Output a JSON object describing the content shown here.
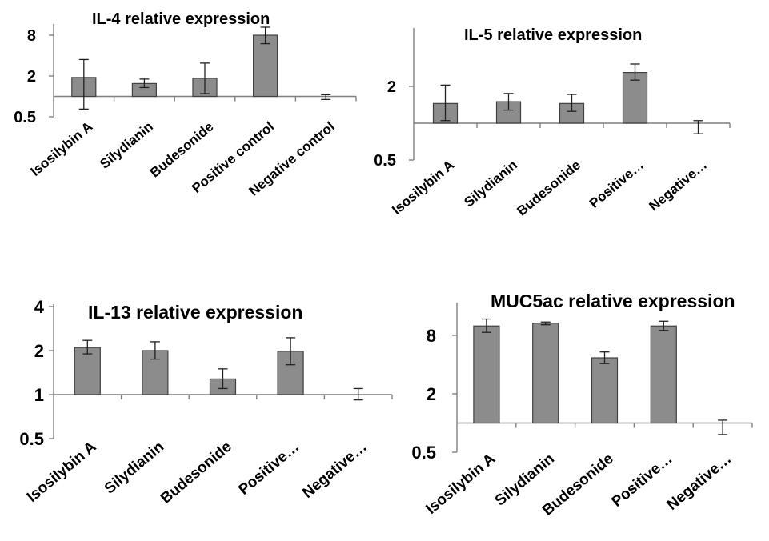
{
  "chart_data": [
    {
      "type": "bar",
      "title": "IL-4 relative expression",
      "scale": "log2",
      "categories": [
        "Isosilybin A",
        "Silydianin",
        "Budesonide",
        "Positive control",
        "Negative control"
      ],
      "values": [
        1.9,
        1.55,
        1.85,
        8.0,
        0.98
      ],
      "errors": [
        [
          0.65,
          3.5
        ],
        [
          1.35,
          1.8
        ],
        [
          1.1,
          3.1
        ],
        [
          6.0,
          10.5
        ],
        [
          0.9,
          1.06
        ]
      ],
      "yticks": [
        "0.5",
        "2",
        "8"
      ],
      "ylim": [
        0.5,
        12
      ],
      "baseline": 1
    },
    {
      "type": "bar",
      "title": "IL-5 relative expression",
      "scale": "log2",
      "categories": [
        "Isosilybin A",
        "Silydianin",
        "Budesonide",
        "Positive…",
        "Negative…"
      ],
      "values": [
        1.45,
        1.5,
        1.45,
        2.6,
        0.9
      ],
      "errors": [
        [
          1.05,
          2.05
        ],
        [
          1.28,
          1.75
        ],
        [
          1.25,
          1.72
        ],
        [
          2.25,
          3.05
        ],
        [
          0.82,
          1.05
        ]
      ],
      "yticks": [
        "0.5",
        "2"
      ],
      "ylim": [
        0.5,
        6
      ],
      "baseline": 1
    },
    {
      "type": "bar",
      "title": "IL-13 relative expression",
      "scale": "log2",
      "categories": [
        "Isosilybin A",
        "Silydianin",
        "Budesonide",
        "Positive…",
        "Negative…"
      ],
      "values": [
        2.1,
        2.0,
        1.28,
        1.98,
        1.0
      ],
      "errors": [
        [
          1.9,
          2.35
        ],
        [
          1.75,
          2.3
        ],
        [
          1.1,
          1.5
        ],
        [
          1.6,
          2.45
        ],
        [
          0.92,
          1.1
        ]
      ],
      "yticks": [
        "0.5",
        "1",
        "2",
        "4"
      ],
      "ylim": [
        0.5,
        4
      ],
      "baseline": 1
    },
    {
      "type": "bar",
      "title": "MUC5ac relative expression",
      "scale": "log2",
      "categories": [
        "Isosilybin A",
        "Silydianin",
        "Budesonide",
        "Positive…",
        "Negative…"
      ],
      "values": [
        10.0,
        10.7,
        4.7,
        10.0,
        0.9
      ],
      "errors": [
        [
          8.6,
          11.8
        ],
        [
          10.3,
          11.0
        ],
        [
          4.1,
          5.4
        ],
        [
          9.0,
          11.2
        ],
        [
          0.76,
          1.07
        ]
      ],
      "yticks": [
        "0.5",
        "2",
        "8"
      ],
      "ylim": [
        0.5,
        16
      ],
      "baseline": 1
    }
  ]
}
